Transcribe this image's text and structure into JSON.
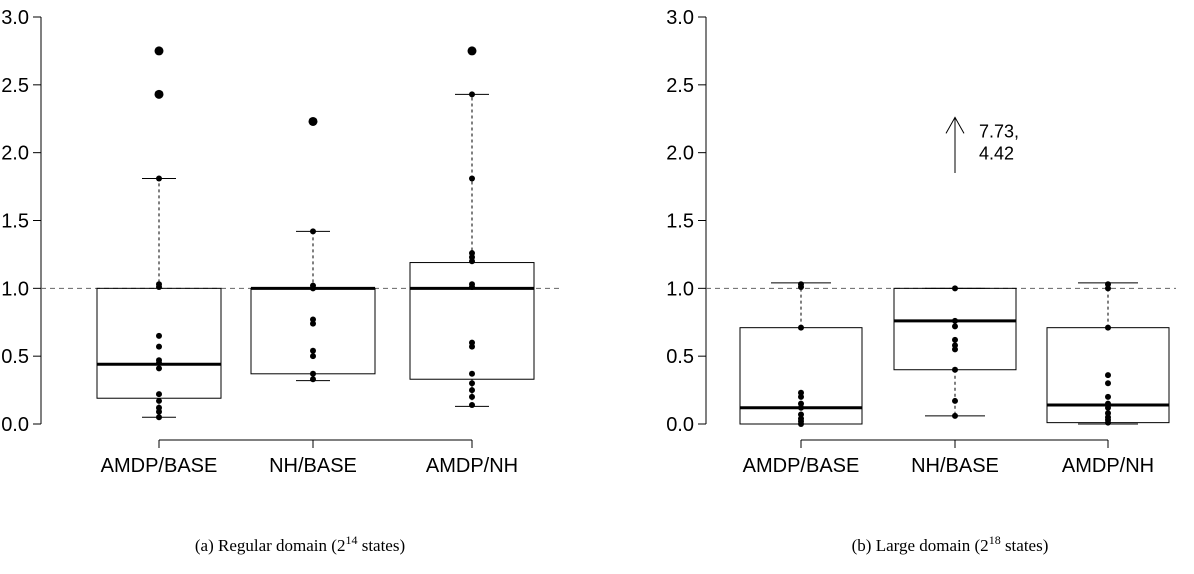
{
  "chart_data": [
    {
      "type": "boxplot",
      "caption": {
        "prefix": "(a) Regular domain (2",
        "exponent": "14",
        "suffix": " states)"
      },
      "ylim": [
        0,
        3
      ],
      "yticks": [
        "0.0",
        "0.5",
        "1.0",
        "1.5",
        "2.0",
        "2.5",
        "3.0"
      ],
      "reference_line": 1.0,
      "categories": [
        "AMDP/BASE",
        "NH/BASE",
        "AMDP/NH"
      ],
      "boxes": [
        {
          "min": 0.05,
          "q1": 0.19,
          "median": 0.44,
          "q3": 1.0,
          "max": 1.81,
          "points": [
            2.75,
            2.43,
            1.81,
            1.03,
            1.01,
            0.65,
            0.57,
            0.47,
            0.45,
            0.41,
            0.22,
            0.17,
            0.12,
            0.09,
            0.05
          ]
        },
        {
          "min": 0.32,
          "q1": 0.37,
          "median": 1.0,
          "q3": 1.0,
          "max": 1.42,
          "points": [
            2.23,
            1.42,
            1.02,
            1.0,
            0.77,
            0.74,
            0.54,
            0.5,
            0.37,
            0.33
          ]
        },
        {
          "min": 0.13,
          "q1": 0.33,
          "median": 1.0,
          "q3": 1.19,
          "max": 2.43,
          "points": [
            2.75,
            2.43,
            1.81,
            1.26,
            1.23,
            1.2,
            1.03,
            1.01,
            0.6,
            0.57,
            0.37,
            0.3,
            0.25,
            0.2,
            0.14
          ]
        }
      ]
    },
    {
      "type": "boxplot",
      "caption": {
        "prefix": "(b) Large domain (2",
        "exponent": "18",
        "suffix": " states)"
      },
      "ylim": [
        0,
        3
      ],
      "yticks": [
        "0.0",
        "0.5",
        "1.0",
        "1.5",
        "2.0",
        "2.5",
        "3.0"
      ],
      "reference_line": 1.0,
      "categories": [
        "AMDP/BASE",
        "NH/BASE",
        "AMDP/NH"
      ],
      "annotation": {
        "line1": "7.73,",
        "line2": "4.42",
        "y_from": 1.85,
        "y_to": 2.26
      },
      "boxes": [
        {
          "min": 0.0,
          "q1": 0.0,
          "median": 0.12,
          "q3": 0.71,
          "max": 1.04,
          "points": [
            1.03,
            1.01,
            0.71,
            0.23,
            0.2,
            0.15,
            0.12,
            0.07,
            0.04,
            0.02,
            0.0
          ]
        },
        {
          "min": 0.06,
          "q1": 0.4,
          "median": 0.76,
          "q3": 1.0,
          "max": 1.0,
          "points": [
            1.0,
            0.76,
            0.72,
            0.62,
            0.58,
            0.55,
            0.4,
            0.17,
            0.06
          ]
        },
        {
          "min": 0.0,
          "q1": 0.01,
          "median": 0.14,
          "q3": 0.71,
          "max": 1.04,
          "points": [
            1.03,
            1.0,
            0.71,
            0.36,
            0.3,
            0.2,
            0.15,
            0.12,
            0.08,
            0.05,
            0.03,
            0.01
          ]
        }
      ]
    }
  ]
}
